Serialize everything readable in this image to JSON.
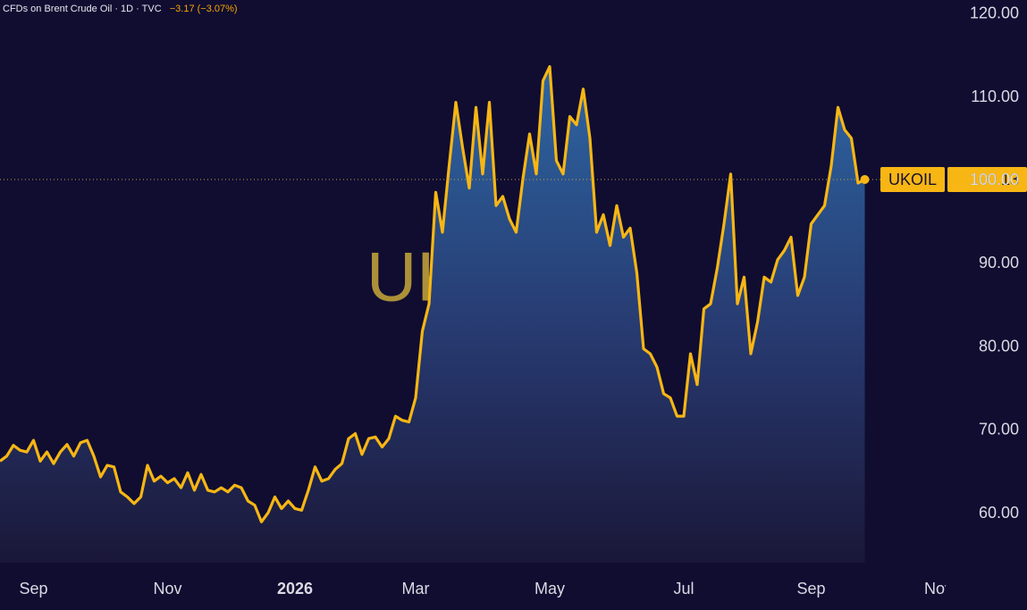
{
  "chart_data": {
    "type": "area",
    "title": "CFDs on Brent Crude Oil · 1D · TVC",
    "subtitle": "−3.17 (−3.07%)",
    "categories": [
      null,
      null,
      null,
      null,
      null,
      "Sep",
      null,
      null,
      null,
      null,
      null,
      null,
      null,
      null,
      null,
      null,
      null,
      null,
      null,
      null,
      null,
      null,
      null,
      null,
      null,
      "Nov",
      null,
      null,
      null,
      null,
      null,
      null,
      null,
      null,
      null,
      null,
      null,
      null,
      null,
      null,
      null,
      null,
      null,
      null,
      "2026",
      null,
      null,
      null,
      null,
      null,
      null,
      null,
      null,
      null,
      null,
      null,
      null,
      null,
      null,
      null,
      null,
      null,
      "Mar",
      null,
      null,
      null,
      null,
      null,
      null,
      null,
      null,
      null,
      null,
      null,
      null,
      null,
      null,
      null,
      null,
      null,
      null,
      null,
      "May",
      null,
      null,
      null,
      null,
      null,
      null,
      null,
      null,
      null,
      null,
      null,
      null,
      null,
      null,
      null,
      null,
      null,
      null,
      null,
      "Jul",
      null,
      null,
      null,
      null,
      null,
      null,
      null,
      null,
      null,
      null,
      null,
      null,
      null,
      null,
      null,
      null,
      null,
      null,
      "Sep",
      null,
      null,
      null,
      null,
      null,
      null,
      null,
      null,
      null,
      null,
      null,
      null,
      null,
      null,
      null,
      null,
      null,
      null,
      "Nov"
    ],
    "series": [
      {
        "name": "UKOIL",
        "color": "#f7b614",
        "values": [
          66.3,
          66.9,
          68.2,
          67.6,
          67.4,
          68.8,
          66.3,
          67.4,
          66.0,
          67.4,
          68.3,
          66.9,
          68.5,
          68.8,
          66.9,
          64.4,
          65.8,
          65.6,
          62.6,
          62.0,
          61.2,
          62.0,
          65.8,
          63.9,
          64.5,
          63.7,
          64.2,
          63.1,
          64.9,
          62.8,
          64.7,
          62.8,
          62.6,
          63.1,
          62.6,
          63.4,
          63.1,
          61.5,
          61.0,
          59.0,
          60.1,
          62.0,
          60.6,
          61.5,
          60.6,
          60.4,
          62.8,
          65.6,
          63.9,
          64.2,
          65.3,
          66.0,
          69.0,
          69.6,
          67.1,
          69.0,
          69.2,
          68.0,
          69.0,
          71.7,
          71.2,
          71.0,
          73.9,
          81.9,
          85.2,
          98.6,
          93.8,
          101.8,
          109.4,
          104.0,
          99.1,
          108.8,
          100.8,
          109.4,
          97.0,
          98.1,
          95.4,
          93.8,
          100.2,
          105.6,
          100.8,
          112.0,
          113.7,
          102.4,
          100.8,
          107.7,
          106.7,
          111.0,
          105.1,
          93.8,
          95.9,
          92.2,
          97.0,
          93.2,
          94.3,
          88.9,
          79.8,
          79.2,
          77.6,
          74.4,
          73.9,
          71.7,
          71.7,
          79.2,
          75.5,
          84.6,
          85.2,
          89.5,
          94.8,
          100.8,
          85.2,
          88.4,
          79.2,
          83.0,
          88.4,
          87.8,
          90.5,
          91.6,
          93.2,
          86.2,
          88.4,
          94.8,
          95.9,
          97.0,
          101.8,
          108.8,
          106.1,
          105.1,
          99.7,
          100.13,
          null,
          null,
          null,
          null,
          null,
          null,
          null,
          null,
          null,
          null,
          null
        ]
      }
    ],
    "ylim": [
      54.1,
      121.7
    ],
    "yticks": [
      {
        "value": 60,
        "label": "60.00"
      },
      {
        "value": 70,
        "label": "70.00"
      },
      {
        "value": 80,
        "label": "80.00"
      },
      {
        "value": 90,
        "label": "90.00"
      },
      {
        "value": 100,
        "label": "100.00"
      },
      {
        "value": 110,
        "label": "110.00"
      },
      {
        "value": 120,
        "label": "120.00"
      }
    ],
    "grid": false
  }
}
